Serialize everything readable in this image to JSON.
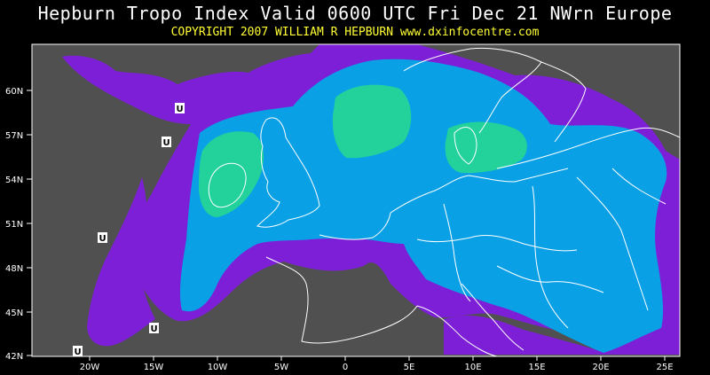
{
  "header": {
    "title": "Hepburn Tropo Index Valid 0600 UTC Fri Dec 21 NWrn Europe",
    "copyright": "COPYRIGHT 2007  WILLIAM R HEPBURN  www.dxinfocentre.com"
  },
  "map": {
    "background_color": "#505050",
    "land_line_color": "#ffffff",
    "index_colors": {
      "purple": "#7d1fd6",
      "light_blue": "#0aa0e6",
      "green": "#22d29a"
    },
    "latitude_labels": [
      "60N",
      "57N",
      "54N",
      "51N",
      "48N",
      "45N",
      "42N"
    ],
    "longitude_labels": [
      "20W",
      "15W",
      "10W",
      "5W",
      "0",
      "5E",
      "10E",
      "15E",
      "20E",
      "25E"
    ],
    "station_marker_label": "U"
  }
}
